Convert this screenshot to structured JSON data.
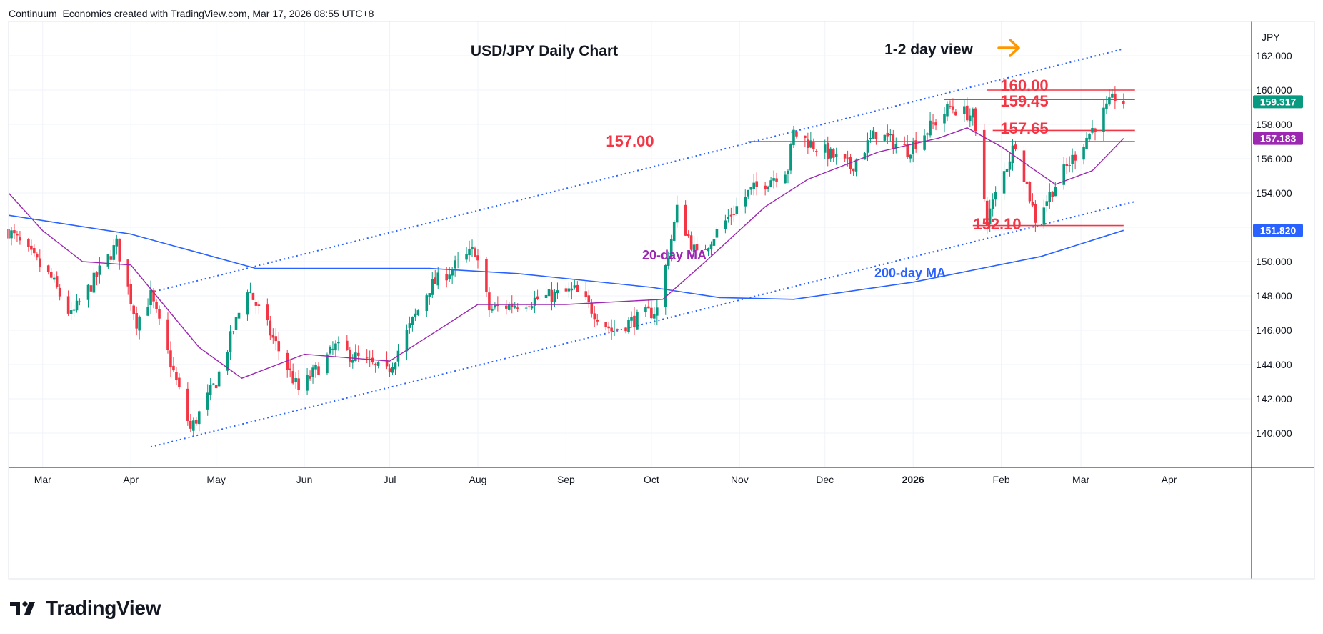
{
  "header": {
    "attribution": "Continuum_Economics created with TradingView.com, Mar 17, 2026 08:55 UTC+8"
  },
  "footer": {
    "brand": "TradingView"
  },
  "colors": {
    "up": "#089981",
    "down": "#f23645",
    "ma20": "#9c27b0",
    "ma200": "#2962ff",
    "level": "#f23645",
    "label": "#f23645",
    "arrow": "#ff9800",
    "price_tag": "#089981",
    "ma20_tag": "#9c27b0",
    "ma200_tag": "#2962ff"
  },
  "icons": {
    "logo": "tradingview-logo-icon",
    "arrow": "arrow-right-icon"
  },
  "chart_data": {
    "type": "candlestick",
    "title": "USD/JPY Daily Chart",
    "subtitle": "1-2 day view",
    "currency": "JPY",
    "ylim": [
      138,
      164
    ],
    "y_ticks": [
      "140.000",
      "142.000",
      "144.000",
      "146.000",
      "148.000",
      "150.000",
      "152.000",
      "154.000",
      "156.000",
      "158.000",
      "160.000",
      "162.000"
    ],
    "x_ticks": [
      "Mar",
      "Apr",
      "May",
      "Jun",
      "Jul",
      "Aug",
      "Sep",
      "Oct",
      "Nov",
      "Dec",
      "2026",
      "Feb",
      "Mar",
      "Apr"
    ],
    "x_range": [
      "2025-02-17",
      "2026-04-30"
    ],
    "ohlc_anchors": [
      [
        "2025-02-17",
        151.8
      ],
      [
        "2025-03-04",
        149.0
      ],
      [
        "2025-03-11",
        146.8
      ],
      [
        "2025-03-27",
        151.0
      ],
      [
        "2025-04-03",
        146.5
      ],
      [
        "2025-04-08",
        148.0
      ],
      [
        "2025-04-22",
        140.2
      ],
      [
        "2025-05-01",
        143.0
      ],
      [
        "2025-05-12",
        148.5
      ],
      [
        "2025-05-30",
        142.5
      ],
      [
        "2025-06-12",
        145.0
      ],
      [
        "2025-06-30",
        143.5
      ],
      [
        "2025-07-15",
        148.5
      ],
      [
        "2025-07-31",
        150.7
      ],
      [
        "2025-08-05",
        147.2
      ],
      [
        "2025-09-04",
        148.3
      ],
      [
        "2025-09-17",
        146.0
      ],
      [
        "2025-10-03",
        147.2
      ],
      [
        "2025-10-10",
        153.0
      ],
      [
        "2025-10-17",
        150.3
      ],
      [
        "2025-11-04",
        154.0
      ],
      [
        "2025-11-18",
        155.5
      ],
      [
        "2025-11-20",
        157.5
      ],
      [
        "2025-12-10",
        155.5
      ],
      [
        "2025-12-19",
        157.5
      ],
      [
        "2025-12-30",
        156.5
      ],
      [
        "2026-01-14",
        159.0
      ],
      [
        "2026-01-22",
        158.5
      ],
      [
        "2026-01-27",
        152.5
      ],
      [
        "2026-02-06",
        157.0
      ],
      [
        "2026-02-13",
        152.5
      ],
      [
        "2026-02-20",
        154.5
      ],
      [
        "2026-03-04",
        157.5
      ],
      [
        "2026-03-13",
        159.6
      ],
      [
        "2026-03-16",
        159.317
      ]
    ],
    "ma20_anchors": [
      [
        "2025-02-17",
        154.0
      ],
      [
        "2025-03-01",
        151.8
      ],
      [
        "2025-03-15",
        150.0
      ],
      [
        "2025-04-01",
        149.8
      ],
      [
        "2025-04-10",
        148.0
      ],
      [
        "2025-04-25",
        145.0
      ],
      [
        "2025-05-10",
        143.2
      ],
      [
        "2025-06-01",
        144.6
      ],
      [
        "2025-07-01",
        144.2
      ],
      [
        "2025-08-01",
        147.5
      ],
      [
        "2025-09-01",
        147.5
      ],
      [
        "2025-10-05",
        147.8
      ],
      [
        "2025-10-20",
        150.0
      ],
      [
        "2025-11-10",
        153.2
      ],
      [
        "2025-11-25",
        154.8
      ],
      [
        "2025-12-20",
        156.4
      ],
      [
        "2026-01-10",
        157.2
      ],
      [
        "2026-01-20",
        157.8
      ],
      [
        "2026-02-01",
        156.7
      ],
      [
        "2026-02-20",
        154.5
      ],
      [
        "2026-03-05",
        155.3
      ],
      [
        "2026-03-16",
        157.183
      ]
    ],
    "ma200_anchors": [
      [
        "2025-02-17",
        152.7
      ],
      [
        "2025-04-01",
        151.6
      ],
      [
        "2025-05-15",
        149.6
      ],
      [
        "2025-07-15",
        149.6
      ],
      [
        "2025-08-15",
        149.3
      ],
      [
        "2025-10-01",
        148.5
      ],
      [
        "2025-10-25",
        147.9
      ],
      [
        "2025-11-20",
        147.8
      ],
      [
        "2026-01-01",
        148.8
      ],
      [
        "2026-02-15",
        150.3
      ],
      [
        "2026-03-16",
        151.82
      ]
    ],
    "channel": {
      "upper": [
        [
          "2025-04-08",
          148.2
        ],
        [
          "2026-03-16",
          162.4
        ]
      ],
      "lower": [
        [
          "2025-04-08",
          139.2
        ],
        [
          "2026-03-20",
          153.5
        ]
      ]
    },
    "levels": [
      {
        "value": 160.0,
        "label": "160.00",
        "from": "2026-01-27",
        "to": "2026-03-20"
      },
      {
        "value": 159.45,
        "label": "159.45",
        "from": "2026-01-12",
        "to": "2026-03-20"
      },
      {
        "value": 157.65,
        "label": "157.65",
        "from": "2026-01-29",
        "to": "2026-03-20"
      },
      {
        "value": 157.0,
        "label": "157.00",
        "from": "2025-11-04",
        "to": "2026-03-20"
      },
      {
        "value": 152.1,
        "label": "152.10",
        "from": "2026-01-22",
        "to": "2026-03-16"
      }
    ],
    "annotations": {
      "ma20": "20-day MA",
      "ma200": "200-day MA"
    },
    "price_tags": [
      {
        "value": 159.317,
        "label": "159.317",
        "kind": "price"
      },
      {
        "value": 157.183,
        "label": "157.183",
        "kind": "ma20"
      },
      {
        "value": 151.82,
        "label": "151.820",
        "kind": "ma200"
      }
    ]
  }
}
